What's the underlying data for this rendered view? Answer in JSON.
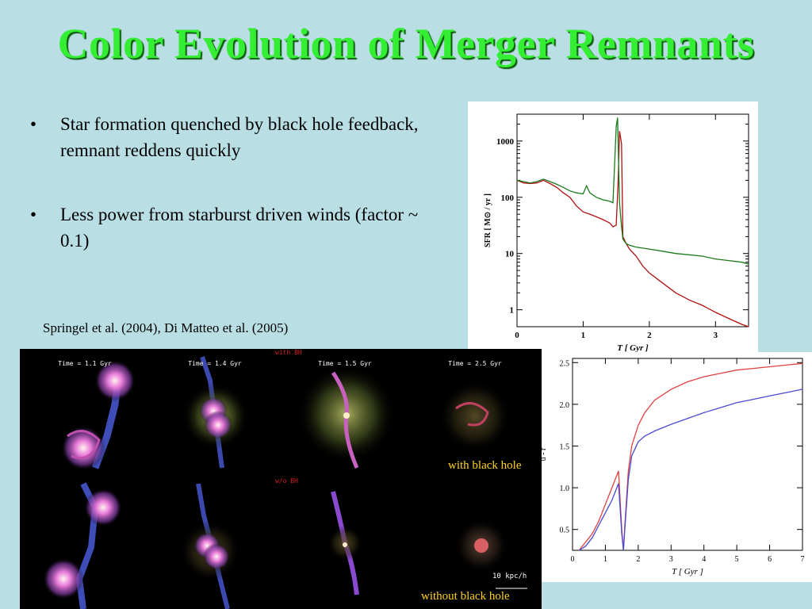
{
  "slide": {
    "title": "Color Evolution of Merger Remnants",
    "bullets": [
      "Star formation quenched by black hole feedback, remnant reddens quickly",
      "Less power from starburst driven winds (factor ~ 0.1)"
    ],
    "bullet_symbol": "•",
    "citation": "Springel et al. (2004), Di Matteo et al. (2005)"
  },
  "simulation": {
    "time_labels": [
      "Time = 1.1 Gyr",
      "Time = 1.4 Gyr",
      "Time = 1.5 Gyr",
      "Time = 2.5 Gyr"
    ],
    "row_top_label": "with BH",
    "row_bottom_label": "w/o BH",
    "label_with": "with black hole",
    "label_without": "without black hole",
    "scale_bar": "10 kpc/h"
  },
  "chart_data": [
    {
      "type": "line",
      "xlabel": "T [ Gyr ]",
      "ylabel": "SFR [ M⊙ / yr ]",
      "xlim": [
        0,
        3.5
      ],
      "ylim": [
        0.5,
        3000
      ],
      "yscale": "log",
      "xticks": [
        "0",
        "1",
        "2",
        "3"
      ],
      "yticks": [
        "1",
        "10",
        "100",
        "1000"
      ],
      "series": [
        {
          "color": "#b01010",
          "x": [
            0,
            0.1,
            0.2,
            0.3,
            0.4,
            0.5,
            0.6,
            0.7,
            0.8,
            0.9,
            1.0,
            1.1,
            1.2,
            1.3,
            1.4,
            1.45,
            1.5,
            1.53,
            1.55,
            1.58,
            1.6,
            1.65,
            1.7,
            1.8,
            1.9,
            2.0,
            2.2,
            2.4,
            2.6,
            2.8,
            3.0,
            3.2,
            3.4,
            3.5
          ],
          "y": [
            200,
            180,
            175,
            180,
            200,
            175,
            150,
            120,
            100,
            70,
            55,
            50,
            45,
            40,
            35,
            30,
            32,
            200,
            1500,
            900,
            20,
            15,
            12,
            9,
            6,
            4.5,
            3,
            2,
            1.5,
            1.2,
            0.9,
            0.7,
            0.55,
            0.5
          ]
        },
        {
          "color": "#1a7a1a",
          "x": [
            0,
            0.1,
            0.2,
            0.3,
            0.4,
            0.5,
            0.6,
            0.7,
            0.8,
            0.9,
            1.0,
            1.05,
            1.1,
            1.2,
            1.3,
            1.4,
            1.45,
            1.5,
            1.52,
            1.55,
            1.58,
            1.6,
            1.65,
            1.7,
            1.8,
            2.0,
            2.2,
            2.4,
            2.6,
            2.8,
            3.0,
            3.2,
            3.4,
            3.5
          ],
          "y": [
            200,
            190,
            180,
            190,
            210,
            190,
            170,
            150,
            130,
            120,
            115,
            160,
            120,
            100,
            90,
            85,
            80,
            1800,
            2600,
            80,
            30,
            18,
            15,
            14,
            13,
            12,
            11,
            10,
            9.5,
            9,
            8,
            7.5,
            7,
            6.5
          ]
        }
      ]
    },
    {
      "type": "line",
      "xlabel": "T [ Gyr ]",
      "ylabel": "u - r",
      "xlim": [
        0,
        7
      ],
      "ylim": [
        0.25,
        2.55
      ],
      "xticks": [
        "0",
        "1",
        "2",
        "3",
        "4",
        "5",
        "6",
        "7"
      ],
      "yticks": [
        "0.5",
        "1.0",
        "1.5",
        "2.0",
        "2.5"
      ],
      "series": [
        {
          "color": "#e04040",
          "x": [
            0.2,
            0.4,
            0.6,
            0.8,
            1.0,
            1.2,
            1.4,
            1.5,
            1.55,
            1.6,
            1.7,
            1.8,
            2.0,
            2.2,
            2.5,
            3.0,
            3.5,
            4.0,
            4.5,
            5.0,
            5.5,
            6.0,
            6.5,
            7.0
          ],
          "y": [
            0.25,
            0.35,
            0.45,
            0.6,
            0.8,
            1.0,
            1.2,
            0.5,
            0.25,
            0.6,
            1.2,
            1.5,
            1.75,
            1.9,
            2.05,
            2.18,
            2.27,
            2.33,
            2.37,
            2.41,
            2.43,
            2.45,
            2.47,
            2.49
          ]
        },
        {
          "color": "#4a4ad0",
          "x": [
            0.2,
            0.4,
            0.6,
            0.8,
            1.0,
            1.2,
            1.4,
            1.5,
            1.55,
            1.6,
            1.7,
            1.8,
            2.0,
            2.2,
            2.5,
            3.0,
            3.5,
            4.0,
            4.5,
            5.0,
            5.5,
            6.0,
            6.5,
            7.0
          ],
          "y": [
            0.25,
            0.3,
            0.4,
            0.55,
            0.7,
            0.85,
            1.05,
            0.45,
            0.25,
            0.55,
            1.1,
            1.38,
            1.55,
            1.62,
            1.68,
            1.76,
            1.83,
            1.9,
            1.96,
            2.02,
            2.06,
            2.1,
            2.14,
            2.18
          ]
        }
      ]
    }
  ]
}
